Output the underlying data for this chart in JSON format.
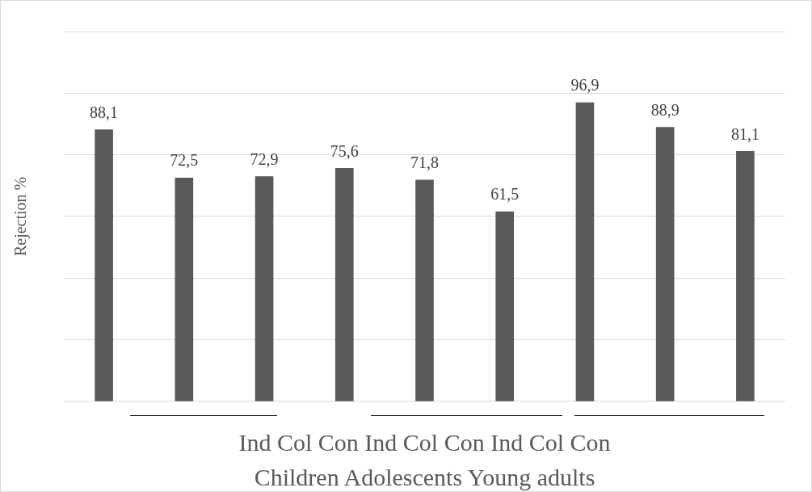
{
  "chart_data": {
    "type": "bar",
    "xlabel": "Ind Col Con Ind Col Con Ind Col Con",
    "ylabel": "Rejection %",
    "annotations": [
      "Children Adolescents Young adults"
    ],
    "categories": [
      null,
      null,
      null,
      null,
      null,
      null,
      null,
      null,
      null
    ],
    "values": [
      88.1,
      72.5,
      72.9,
      75.6,
      71.8,
      61.5,
      96.9,
      88.9,
      81.1
    ],
    "color": "#595959",
    "value_labels": [
      "88,1",
      "72,5",
      "72,9",
      "75,6",
      "71,8",
      "61,5",
      "96,9",
      "88,9",
      "81,1"
    ],
    "grid": "y",
    "legend": false
  }
}
